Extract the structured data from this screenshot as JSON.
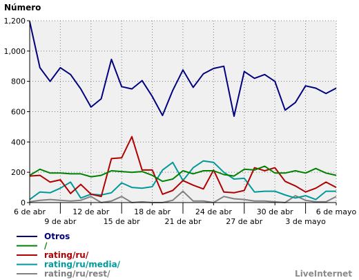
{
  "chart_data": {
    "type": "line",
    "title": "",
    "ylabel": "Número",
    "xlabel": "",
    "ylim": [
      0,
      1200
    ],
    "grid": true,
    "legend_position": "bottom-left",
    "credit": "LiveInternet",
    "yticks": [
      {
        "value": 0,
        "label": "0"
      },
      {
        "value": 200,
        "label": "200"
      },
      {
        "value": 400,
        "label": "400"
      },
      {
        "value": 600,
        "label": "600"
      },
      {
        "value": 800,
        "label": "800"
      },
      {
        "value": 1000,
        "label": "1,000"
      },
      {
        "value": 1200,
        "label": "1,200"
      }
    ],
    "xticks_top": [
      {
        "index": 0,
        "label": "6 de abr"
      },
      {
        "index": 6,
        "label": "12 de abr"
      },
      {
        "index": 12,
        "label": "18 de abr"
      },
      {
        "index": 18,
        "label": "24 de abr"
      },
      {
        "index": 24,
        "label": "30 de abr"
      },
      {
        "index": 30,
        "label": "6 de mayo"
      }
    ],
    "xticks_bottom": [
      {
        "index": 3,
        "label": "9 de abr"
      },
      {
        "index": 9,
        "label": "15 de abr"
      },
      {
        "index": 15,
        "label": "21 de abr"
      },
      {
        "index": 21,
        "label": "27 de abr"
      },
      {
        "index": 27,
        "label": "3 de mayo"
      }
    ],
    "series": [
      {
        "name": "Otros",
        "color": "#00007f",
        "values": [
          1195,
          890,
          800,
          890,
          845,
          750,
          630,
          685,
          945,
          765,
          750,
          805,
          700,
          575,
          740,
          875,
          760,
          850,
          885,
          900,
          570,
          865,
          820,
          845,
          800,
          610,
          660,
          770,
          755,
          720,
          755
        ]
      },
      {
        "name": "/",
        "color": "#008000",
        "values": [
          180,
          220,
          195,
          195,
          190,
          190,
          170,
          180,
          210,
          205,
          200,
          205,
          180,
          140,
          155,
          210,
          190,
          210,
          210,
          185,
          175,
          220,
          215,
          240,
          195,
          195,
          210,
          195,
          225,
          195,
          180
        ]
      },
      {
        "name": "rating/ru/",
        "color": "#b00000",
        "values": [
          175,
          180,
          135,
          150,
          60,
          120,
          55,
          40,
          290,
          295,
          435,
          215,
          215,
          55,
          80,
          145,
          115,
          90,
          215,
          70,
          65,
          80,
          230,
          210,
          230,
          140,
          110,
          70,
          95,
          135,
          100
        ]
      },
      {
        "name": "rating/ru/media/",
        "color": "#009999",
        "values": [
          20,
          70,
          65,
          95,
          135,
          30,
          55,
          50,
          65,
          130,
          100,
          95,
          105,
          215,
          265,
          145,
          230,
          275,
          265,
          200,
          155,
          160,
          70,
          75,
          75,
          50,
          30,
          45,
          20,
          75,
          75
        ]
      },
      {
        "name": "rating/ru/rest/",
        "color": "#808080",
        "values": [
          5,
          15,
          20,
          15,
          10,
          15,
          40,
          0,
          10,
          40,
          0,
          5,
          0,
          0,
          15,
          75,
          10,
          10,
          0,
          40,
          25,
          20,
          10,
          10,
          5,
          0,
          45,
          15,
          5,
          5,
          40
        ]
      }
    ]
  }
}
